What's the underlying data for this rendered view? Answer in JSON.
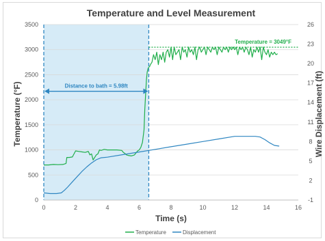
{
  "chart_data": {
    "type": "line",
    "title": "Temperature and Level Measurement",
    "xlabel": "Time (s)",
    "ylabel": "Temperature (°F)",
    "y2label": "Wire Displacement (ft)",
    "xlim": [
      0,
      16
    ],
    "ylim": [
      0,
      3500
    ],
    "y2lim": [
      -1,
      26
    ],
    "x_ticks": [
      0,
      2,
      4,
      6,
      8,
      10,
      12,
      14,
      16
    ],
    "y_ticks": [
      0,
      500,
      1000,
      1500,
      2000,
      2500,
      3000,
      3500
    ],
    "y2_ticks": [
      -1,
      2,
      5,
      8,
      11,
      14,
      17,
      20,
      23,
      26
    ],
    "grid": "horizontal",
    "legend_position": "bottom",
    "series": [
      {
        "name": "Temperature",
        "axis": "left",
        "color": "#1fae4a",
        "x": [
          0,
          0.3,
          0.6,
          0.9,
          1.2,
          1.4,
          1.45,
          1.6,
          1.8,
          2.0,
          2.2,
          2.4,
          2.6,
          2.8,
          2.9,
          3.0,
          3.1,
          3.2,
          3.3,
          3.4,
          3.5,
          3.6,
          3.7,
          3.8,
          4.0,
          4.3,
          4.6,
          4.9,
          5.0,
          5.1,
          5.2,
          5.3,
          5.5,
          5.7,
          5.9,
          6.0,
          6.1,
          6.2,
          6.3,
          6.35,
          6.4,
          6.45,
          6.5,
          6.55,
          6.6,
          6.65,
          6.7,
          6.8,
          6.9,
          7.0,
          7.1,
          7.2,
          7.3,
          7.4,
          7.5,
          7.6,
          7.7,
          7.8,
          7.9,
          8.0,
          8.1,
          8.2,
          8.3,
          8.4,
          8.5,
          8.6,
          8.7,
          8.8,
          8.9,
          9.0,
          9.1,
          9.2,
          9.3,
          9.4,
          9.5,
          9.6,
          9.7,
          9.8,
          9.9,
          10.0,
          10.1,
          10.2,
          10.3,
          10.4,
          10.5,
          10.6,
          10.7,
          10.8,
          10.9,
          11.0,
          11.1,
          11.2,
          11.3,
          11.4,
          11.5,
          11.6,
          11.7,
          11.8,
          11.9,
          12.0,
          12.1,
          12.2,
          12.3,
          12.4,
          12.5,
          12.6,
          12.7,
          12.8,
          12.9,
          13.0,
          13.1,
          13.2,
          13.3,
          13.4,
          13.5,
          13.6,
          13.7,
          13.8,
          13.9,
          14.0,
          14.1,
          14.2,
          14.3,
          14.4,
          14.5,
          14.6,
          14.7
        ],
        "values": [
          700,
          700,
          710,
          705,
          710,
          730,
          850,
          850,
          860,
          980,
          970,
          960,
          950,
          970,
          900,
          920,
          800,
          850,
          900,
          920,
          1000,
          990,
          1000,
          1010,
          1000,
          1000,
          1000,
          990,
          950,
          930,
          900,
          890,
          880,
          900,
          980,
          1000,
          1050,
          1150,
          1400,
          1800,
          2100,
          2400,
          2550,
          2620,
          2650,
          2660,
          2700,
          2750,
          2900,
          2800,
          2950,
          2700,
          2900,
          2800,
          2950,
          2750,
          2950,
          3000,
          2850,
          3050,
          2800,
          3050,
          2900,
          2950,
          3000,
          2800,
          3050,
          2950,
          3000,
          2850,
          3050,
          2950,
          3000,
          2900,
          3050,
          2800,
          3000,
          3050,
          2950,
          3000,
          3050,
          2900,
          3050,
          3000,
          2950,
          3050,
          3000,
          3050,
          2900,
          3050,
          3000,
          2950,
          3050,
          3000,
          3050,
          2950,
          3050,
          3000,
          3050,
          3000,
          3050,
          2900,
          3050,
          3000,
          3050,
          2950,
          3050,
          3000,
          2900,
          3050,
          2850,
          3000,
          2950,
          3050,
          2950,
          3050,
          2800,
          3050,
          2950,
          2900,
          3000,
          2850,
          2950,
          2900,
          2950,
          2900,
          2920
        ]
      },
      {
        "name": "Displacement",
        "axis": "right",
        "color": "#2e86c1",
        "x": [
          0,
          0.4,
          0.8,
          1.1,
          1.3,
          1.5,
          1.8,
          2.1,
          2.4,
          2.7,
          3.0,
          3.3,
          3.6,
          4.0,
          5.0,
          6.0,
          7.0,
          8.0,
          9.0,
          10.0,
          11.0,
          12.0,
          12.5,
          13.0,
          13.3,
          13.6,
          13.9,
          14.2,
          14.5,
          14.8
        ],
        "values": [
          0.1,
          0.0,
          0.0,
          0.1,
          0.5,
          1.0,
          1.8,
          2.6,
          3.4,
          4.1,
          4.7,
          5.2,
          5.5,
          5.6,
          6.0,
          6.4,
          6.8,
          7.2,
          7.6,
          8.0,
          8.4,
          8.8,
          8.8,
          8.8,
          8.8,
          8.7,
          8.3,
          7.8,
          7.4,
          7.3
        ]
      }
    ],
    "annotations": {
      "temperature_line_label": "Temperature = 3049°F",
      "temperature_line_value": 3049,
      "distance_label": "Distance to bath = 5.98ft",
      "marker_x_start": 0,
      "marker_x_end": 6.6
    }
  },
  "colors": {
    "temperature": "#1fae4a",
    "displacement": "#2e86c1",
    "shade": "#d6ebf7",
    "marker": "#2e86c1",
    "gridline": "#d9d9d9"
  }
}
